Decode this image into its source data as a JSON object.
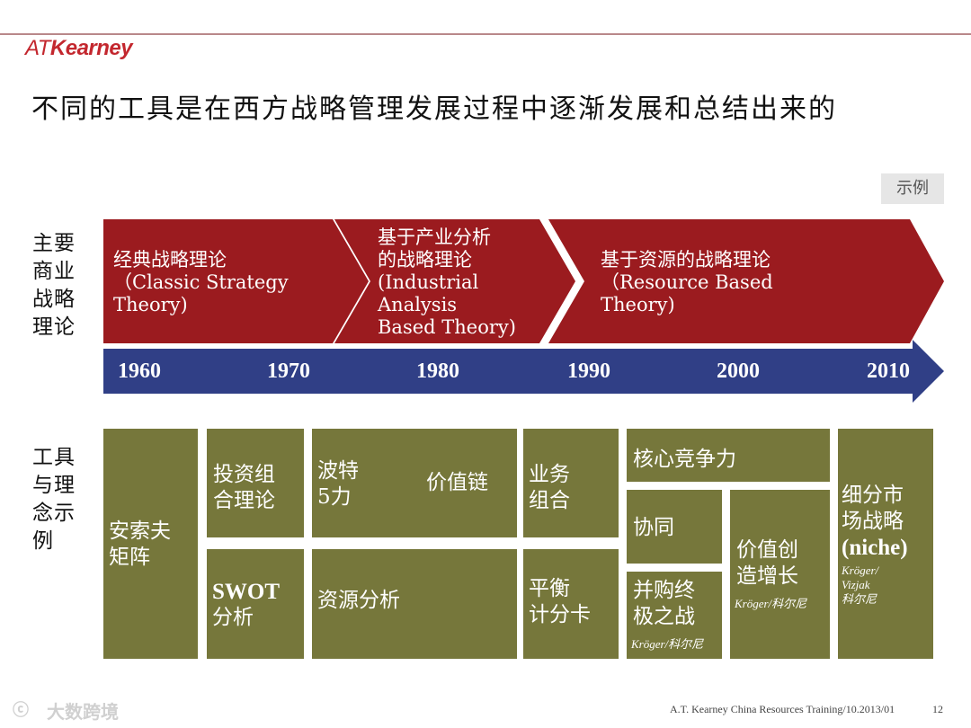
{
  "header": {
    "logo_prefix": "AT",
    "logo_name": "Kearney",
    "title": "不同的工具是在西方战略管理发展过程中逐渐发展和总结出来的"
  },
  "tag": "示例",
  "row_labels": {
    "theories": [
      "主要",
      "商业",
      "战略",
      "理论"
    ],
    "tools": [
      "工具",
      "与理",
      "念示",
      "例"
    ]
  },
  "theories": [
    {
      "lines": [
        "经典战略理论",
        "（Classic Strategy",
        "Theory)"
      ]
    },
    {
      "lines": [
        "基于产业分析",
        "的战略理论",
        "(Industrial",
        "Analysis",
        "Based Theory)"
      ]
    },
    {
      "lines": [
        "基于资源的战略理论",
        "（Resource Based",
        "Theory)"
      ]
    }
  ],
  "timeline": {
    "years": [
      "1960",
      "1970",
      "1980",
      "1990",
      "2000",
      "2010"
    ]
  },
  "tools": {
    "ansoff": [
      "安索夫",
      "矩阵"
    ],
    "portfolio": [
      "投资组",
      "合理论"
    ],
    "swot": [
      "SWOT",
      "分析"
    ],
    "porter5": [
      "波特",
      "5力"
    ],
    "value_chain": "价值链",
    "resource": "资源分析",
    "business_mix": [
      "业务",
      "组合"
    ],
    "bsc": [
      "平衡",
      "计分卡"
    ],
    "core_comp": "核心竞争力",
    "synergy": "协同",
    "mna": [
      "并购终",
      "极之战"
    ],
    "mna_note": "Kröger/科尔尼",
    "value_growth": [
      "价值创",
      "造增长"
    ],
    "value_growth_note": "Kröger/科尔尼",
    "niche": [
      "细分市",
      "场战略",
      "(niche)"
    ],
    "niche_note": [
      "Kröger/",
      "Vizjak",
      "科尔尼"
    ]
  },
  "footer": {
    "text": "A.T. Kearney  China Resources  Training/10.2013/01",
    "page": "12",
    "watermark": "大数跨境"
  },
  "colors": {
    "theory_red": "#9b1b1f",
    "timeline_blue": "#303f86",
    "tool_olive": "#76773b"
  }
}
